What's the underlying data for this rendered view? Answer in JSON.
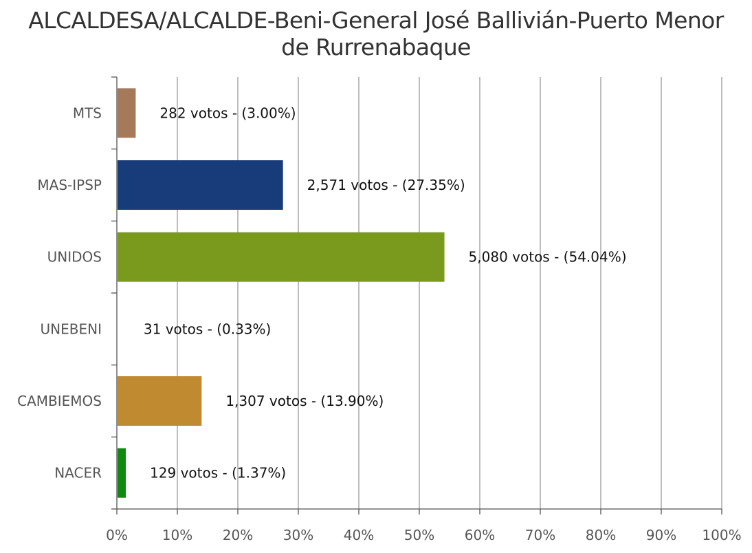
{
  "chart_data": {
    "type": "bar",
    "orientation": "horizontal",
    "title_lines": [
      "ALCALDESA/ALCALDE-Beni-General José Ballivián-Puerto Menor",
      "de Rurrenabaque"
    ],
    "categories": [
      "MTS",
      "MAS-IPSP",
      "UNIDOS",
      "UNEBENI",
      "CAMBIEMOS",
      "NACER"
    ],
    "values": [
      3.0,
      27.35,
      54.04,
      0.33,
      13.9,
      1.37
    ],
    "votes": [
      282,
      2571,
      5080,
      31,
      1307,
      129
    ],
    "data_labels": [
      "282 votos - (3.00%)",
      "2,571 votos - (27.35%)",
      "5,080 votos - (54.04%)",
      "31 votos - (0.33%)",
      "1,307 votos - (13.90%)",
      "129 votos - (1.37%)"
    ],
    "colors": [
      "#A47A5A",
      "#183C7A",
      "#7A9A1E",
      "#FFFFFF",
      "#C08A30",
      "#118811"
    ],
    "xlim": [
      0,
      100
    ],
    "xticks": [
      "0%",
      "10%",
      "20%",
      "30%",
      "40%",
      "50%",
      "60%",
      "70%",
      "80%",
      "90%",
      "100%"
    ],
    "grid": true,
    "legend": "none"
  }
}
